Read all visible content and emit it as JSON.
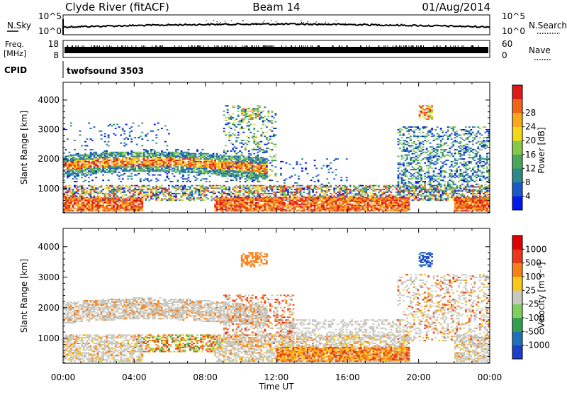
{
  "header": {
    "station": "Clyde River (fitACF)",
    "beam": "Beam 14",
    "date": "01/Aug/2014"
  },
  "sky_panel": {
    "left_label": "N.Sky",
    "right_label": "N.Search",
    "left_ticks": [
      "10^5",
      "10^0"
    ],
    "right_ticks": [
      "10^5",
      "10^0"
    ]
  },
  "freq_panel": {
    "left_label_top": "Freq.",
    "left_label_bottom": "[MHz]",
    "right_label": "Nave",
    "left_ticks": [
      "18",
      "8"
    ],
    "right_ticks": [
      "60",
      "0"
    ]
  },
  "cpid_panel": {
    "label": "CPID",
    "text": "twofsound 3503"
  },
  "chart_data": [
    {
      "type": "heatmap",
      "name": "power",
      "ylabel": "Slant Range [km]",
      "xlabel": "",
      "ylim": [
        180,
        4600
      ],
      "y_ticks": [
        1000,
        2000,
        3000,
        4000
      ],
      "x_ticks": [
        "00:00",
        "04:00",
        "08:00",
        "12:00",
        "16:00",
        "20:00",
        "00:00"
      ],
      "colorbar": {
        "label": "Power [dB]",
        "ticks": [
          "4",
          "8",
          "12",
          "16",
          "20",
          "24",
          "28"
        ],
        "colors": [
          "#0018f0",
          "#1858c8",
          "#2a8a8a",
          "#4aa85a",
          "#88c848",
          "#f2d818",
          "#f8a818",
          "#f06418",
          "#e01818"
        ]
      }
    },
    {
      "type": "heatmap",
      "name": "velocity",
      "ylabel": "Slant Range [km]",
      "xlabel": "Time UT",
      "ylim": [
        180,
        4600
      ],
      "y_ticks": [
        1000,
        2000,
        3000,
        4000
      ],
      "x_ticks": [
        "00:00",
        "04:00",
        "08:00",
        "12:00",
        "16:00",
        "20:00",
        "00:00"
      ],
      "colorbar": {
        "label": "Velocity [m s⁻¹]",
        "ticks": [
          "1000",
          "500",
          "100",
          "25",
          "-25",
          "-100",
          "-500",
          "-1000"
        ],
        "colors": [
          "#1840c8",
          "#2070b8",
          "#30a050",
          "#80d060",
          "#c8c8c0",
          "#f8c818",
          "#f88018",
          "#e83818",
          "#e00000"
        ]
      }
    }
  ]
}
